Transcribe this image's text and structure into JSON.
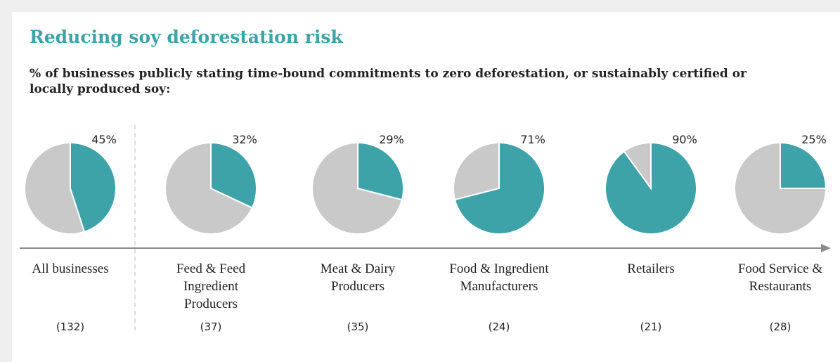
{
  "chart_data": {
    "type": "pie",
    "title": "Reducing soy deforestation risk",
    "subtitle": "% of businesses publicly stating time-bound commitments to zero deforestation,  or sustainably certified or locally produced soy:",
    "categories": [
      "All businesses",
      "Feed & Feed Ingredient Producers",
      "Meat & Dairy Producers",
      "Food & Ingredient Manufacturers",
      "Retailers",
      "Food Service & Restaurants"
    ],
    "values": [
      45,
      32,
      29,
      71,
      90,
      25
    ],
    "value_labels": [
      "45%",
      "32%",
      "29%",
      "71%",
      "90%",
      "25%"
    ],
    "sample_labels": [
      "(132)",
      "(37)",
      "(35)",
      "(24)",
      "(21)",
      "(28)"
    ],
    "color": "#3ea3a9",
    "remainder_color": "#c9c9c9"
  }
}
